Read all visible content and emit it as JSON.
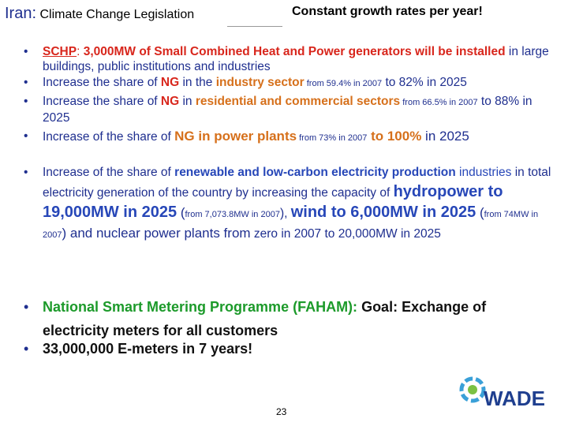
{
  "header": {
    "country": "Iran:",
    "title": "Climate Change Legislation",
    "note": "Constant growth rates per year!"
  },
  "bullets": [
    [
      "SCHP",
      ": ",
      "3,000MW of  Small Combined Heat and Power generators will be installed",
      " in large buildings, public institutions and industries"
    ],
    [
      "Increase the share of ",
      "NG",
      " in the ",
      "industry sector",
      " from 59.4% in 2007",
      " to 82% in 2025"
    ],
    [
      " Increase the share of  ",
      "NG",
      "  in ",
      "residential and commercial sectors",
      " from 66.5% in 2007",
      " to 88% in 2025"
    ],
    [
      "Increase of the share of  ",
      "NG in power plants",
      " from 73% in 2007",
      " to 100%",
      " in 2025"
    ],
    [
      "Increase of the share of ",
      "renewable and low-carbon electricity production",
      " industries",
      " in total electricity generation of the country by increasing the capacity of ",
      "hydropower to 19,000MW in 2025",
      " (",
      "from 7,073.8MW in 2007",
      "), ",
      "wind to 6,000MW in 2025",
      " (",
      "from 74MW in 2007",
      ") and ",
      "nuclear power plants from",
      " zero in 2007 to 20,000MW in 2025"
    ],
    [
      "National Smart Metering Programme (FAHAM): ",
      "Goal:",
      " Exchange of electricity meters for all customers"
    ],
    [
      "33,000,000 E-meters in 7 years!"
    ]
  ],
  "footer": {
    "page": "23",
    "logo": "WADE"
  }
}
